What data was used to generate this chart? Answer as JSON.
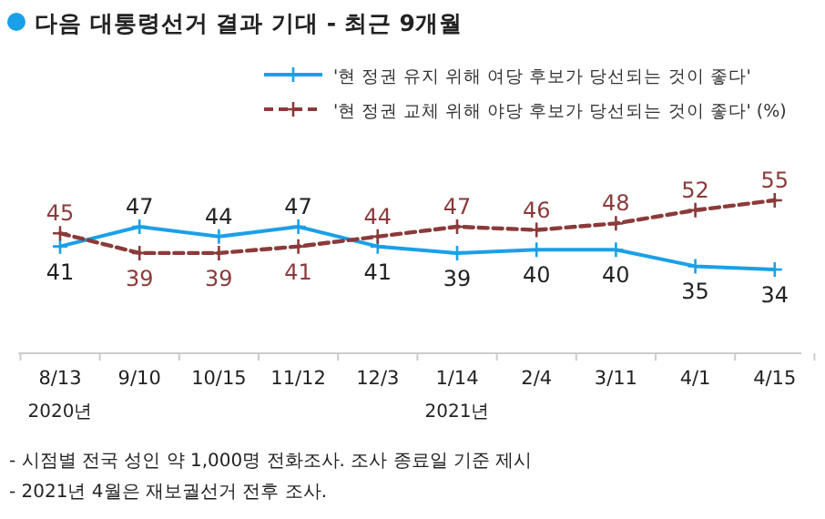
{
  "chart_data": {
    "type": "line",
    "title": "다음 대통령선거 결과 기대 - 최근 9개월",
    "categories": [
      "8/13\n2020년",
      "9/10",
      "10/15",
      "11/12",
      "12/3",
      "1/14\n2021년",
      "2/4",
      "3/11",
      "4/1",
      "4/15"
    ],
    "series": [
      {
        "name": "'현 정권 유지 위해 여당 후보가 당선되는 것이 좋다'",
        "color": "#1aa0e8",
        "line_style": "solid",
        "values": [
          41,
          47,
          44,
          47,
          41,
          39,
          40,
          40,
          35,
          34
        ]
      },
      {
        "name": "'현 정권 교체 위해 야당 후보가 당선되는 것이 좋다' (%)",
        "color": "#8b3a3a",
        "line_style": "dashed",
        "values": [
          45,
          39,
          39,
          41,
          44,
          47,
          46,
          48,
          52,
          55
        ]
      }
    ],
    "marker": "cross",
    "data_labels": true,
    "legend": "top right",
    "annotations": [
      "- 시점별 전국 성인 약 1,000명 전화조사. 조사 종료일 기준 제시",
      "- 2021년 4월은 재보궐선거 전후 조사."
    ]
  }
}
